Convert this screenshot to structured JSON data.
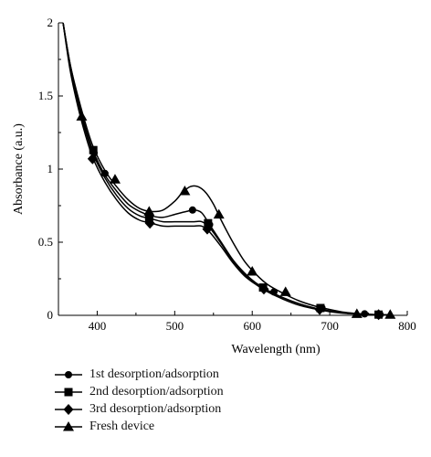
{
  "chart_data": {
    "type": "line",
    "xlabel": "Wavelength (nm)",
    "ylabel": "Absorbance (a.u.)",
    "xlim": [
      350,
      800
    ],
    "ylim": [
      0,
      2
    ],
    "x_ticks": [
      400,
      500,
      600,
      700,
      800
    ],
    "y_ticks": [
      0,
      0.5,
      1,
      1.5,
      2
    ],
    "x_tick_labels": [
      "400",
      "500",
      "600",
      "700",
      "800"
    ],
    "y_tick_labels": [
      "0",
      "0.5",
      "1",
      "1.5",
      "2"
    ],
    "legend_position": "below",
    "series": [
      {
        "name": "1st desorption/adsorption",
        "marker": "circle",
        "curve": [
          [
            356,
            2.0
          ],
          [
            365,
            1.72
          ],
          [
            375,
            1.48
          ],
          [
            385,
            1.28
          ],
          [
            395,
            1.12
          ],
          [
            410,
            0.96
          ],
          [
            425,
            0.85
          ],
          [
            440,
            0.76
          ],
          [
            455,
            0.71
          ],
          [
            470,
            0.68
          ],
          [
            485,
            0.67
          ],
          [
            500,
            0.69
          ],
          [
            515,
            0.71
          ],
          [
            525,
            0.72
          ],
          [
            535,
            0.7
          ],
          [
            545,
            0.62
          ],
          [
            560,
            0.5
          ],
          [
            575,
            0.38
          ],
          [
            590,
            0.29
          ],
          [
            605,
            0.22
          ],
          [
            620,
            0.17
          ],
          [
            640,
            0.12
          ],
          [
            660,
            0.08
          ],
          [
            680,
            0.05
          ],
          [
            700,
            0.03
          ],
          [
            720,
            0.015
          ],
          [
            740,
            0.008
          ],
          [
            760,
            0.004
          ],
          [
            780,
            0.002
          ]
        ],
        "markers": [
          [
            396,
            1.11
          ],
          [
            410,
            0.97
          ],
          [
            468,
            0.68
          ],
          [
            523,
            0.72
          ],
          [
            545,
            0.62
          ],
          [
            628,
            0.16
          ],
          [
            690,
            0.05
          ],
          [
            745,
            0.01
          ],
          [
            765,
            0.005
          ]
        ]
      },
      {
        "name": "2nd desorption/adsorption",
        "marker": "square",
        "curve": [
          [
            356,
            2.0
          ],
          [
            365,
            1.7
          ],
          [
            375,
            1.45
          ],
          [
            385,
            1.26
          ],
          [
            395,
            1.1
          ],
          [
            410,
            0.94
          ],
          [
            425,
            0.82
          ],
          [
            440,
            0.73
          ],
          [
            455,
            0.68
          ],
          [
            470,
            0.66
          ],
          [
            485,
            0.64
          ],
          [
            500,
            0.64
          ],
          [
            515,
            0.64
          ],
          [
            525,
            0.64
          ],
          [
            535,
            0.64
          ],
          [
            545,
            0.6
          ],
          [
            560,
            0.49
          ],
          [
            575,
            0.37
          ],
          [
            590,
            0.28
          ],
          [
            605,
            0.22
          ],
          [
            620,
            0.17
          ],
          [
            640,
            0.12
          ],
          [
            660,
            0.08
          ],
          [
            680,
            0.05
          ],
          [
            700,
            0.03
          ],
          [
            720,
            0.015
          ],
          [
            740,
            0.008
          ],
          [
            760,
            0.004
          ],
          [
            780,
            0.002
          ]
        ],
        "markers": [
          [
            395,
            1.13
          ],
          [
            467,
            0.66
          ],
          [
            543,
            0.63
          ],
          [
            614,
            0.19
          ],
          [
            688,
            0.05
          ],
          [
            763,
            0.005
          ]
        ]
      },
      {
        "name": "3rd desorption/adsorption",
        "marker": "diamond",
        "curve": [
          [
            356,
            2.0
          ],
          [
            365,
            1.68
          ],
          [
            375,
            1.43
          ],
          [
            385,
            1.23
          ],
          [
            395,
            1.07
          ],
          [
            410,
            0.91
          ],
          [
            425,
            0.79
          ],
          [
            440,
            0.7
          ],
          [
            455,
            0.65
          ],
          [
            470,
            0.63
          ],
          [
            485,
            0.61
          ],
          [
            500,
            0.61
          ],
          [
            515,
            0.61
          ],
          [
            525,
            0.61
          ],
          [
            535,
            0.61
          ],
          [
            545,
            0.57
          ],
          [
            560,
            0.47
          ],
          [
            575,
            0.36
          ],
          [
            590,
            0.27
          ],
          [
            605,
            0.21
          ],
          [
            620,
            0.16
          ],
          [
            640,
            0.11
          ],
          [
            660,
            0.07
          ],
          [
            680,
            0.045
          ],
          [
            700,
            0.025
          ],
          [
            720,
            0.013
          ],
          [
            740,
            0.007
          ],
          [
            760,
            0.003
          ],
          [
            780,
            0.002
          ]
        ],
        "markers": [
          [
            394,
            1.07
          ],
          [
            468,
            0.63
          ],
          [
            542,
            0.59
          ],
          [
            615,
            0.18
          ],
          [
            687,
            0.04
          ],
          [
            763,
            0.005
          ]
        ]
      },
      {
        "name": "Fresh device",
        "marker": "triangle",
        "curve": [
          [
            356,
            2.0
          ],
          [
            365,
            1.72
          ],
          [
            375,
            1.5
          ],
          [
            385,
            1.31
          ],
          [
            395,
            1.15
          ],
          [
            410,
            0.99
          ],
          [
            425,
            0.88
          ],
          [
            440,
            0.79
          ],
          [
            455,
            0.73
          ],
          [
            470,
            0.71
          ],
          [
            485,
            0.72
          ],
          [
            500,
            0.78
          ],
          [
            510,
            0.84
          ],
          [
            520,
            0.88
          ],
          [
            530,
            0.88
          ],
          [
            540,
            0.84
          ],
          [
            550,
            0.76
          ],
          [
            560,
            0.65
          ],
          [
            575,
            0.5
          ],
          [
            590,
            0.37
          ],
          [
            605,
            0.28
          ],
          [
            620,
            0.21
          ],
          [
            640,
            0.15
          ],
          [
            660,
            0.1
          ],
          [
            680,
            0.065
          ],
          [
            700,
            0.04
          ],
          [
            720,
            0.02
          ],
          [
            740,
            0.01
          ],
          [
            760,
            0.005
          ],
          [
            780,
            0.002
          ]
        ],
        "markers": [
          [
            380,
            1.36
          ],
          [
            423,
            0.93
          ],
          [
            467,
            0.71
          ],
          [
            513,
            0.85
          ],
          [
            557,
            0.69
          ],
          [
            600,
            0.3
          ],
          [
            643,
            0.16
          ],
          [
            735,
            0.01
          ],
          [
            778,
            0.005
          ]
        ]
      }
    ]
  }
}
